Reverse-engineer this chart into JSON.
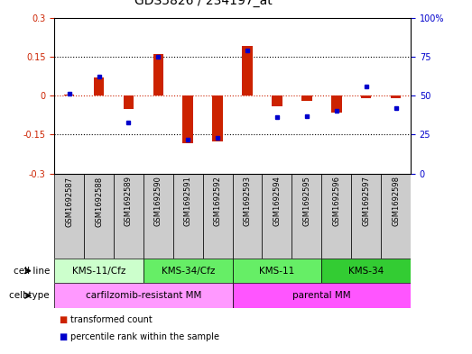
{
  "title": "GDS5826 / 234197_at",
  "samples": [
    "GSM1692587",
    "GSM1692588",
    "GSM1692589",
    "GSM1692590",
    "GSM1692591",
    "GSM1692592",
    "GSM1692593",
    "GSM1692594",
    "GSM1692595",
    "GSM1692596",
    "GSM1692597",
    "GSM1692598"
  ],
  "transformed_count": [
    0.005,
    0.07,
    -0.05,
    0.16,
    -0.185,
    -0.175,
    0.19,
    -0.04,
    -0.02,
    -0.065,
    -0.01,
    -0.01
  ],
  "percentile_rank": [
    51,
    62,
    33,
    75,
    22,
    23,
    79,
    36,
    37,
    40,
    56,
    42
  ],
  "ylim_left": [
    -0.3,
    0.3
  ],
  "ylim_right": [
    0,
    100
  ],
  "yticks_left": [
    -0.3,
    -0.15,
    0,
    0.15,
    0.3
  ],
  "yticks_right": [
    0,
    25,
    50,
    75,
    100
  ],
  "cell_line_groups": [
    {
      "label": "KMS-11/Cfz",
      "start": 0,
      "end": 3,
      "color": "#ccffcc"
    },
    {
      "label": "KMS-34/Cfz",
      "start": 3,
      "end": 6,
      "color": "#66ee66"
    },
    {
      "label": "KMS-11",
      "start": 6,
      "end": 9,
      "color": "#66ee66"
    },
    {
      "label": "KMS-34",
      "start": 9,
      "end": 12,
      "color": "#33cc33"
    }
  ],
  "cell_type_groups": [
    {
      "label": "carfilzomib-resistant MM",
      "start": 0,
      "end": 6,
      "color": "#ff99ff"
    },
    {
      "label": "parental MM",
      "start": 6,
      "end": 12,
      "color": "#ff55ff"
    }
  ],
  "bar_color": "#cc2200",
  "dot_color": "#0000cc",
  "zero_line_color": "#cc2200",
  "grid_color": "#000000",
  "bg_color": "#ffffff",
  "plot_bg": "#ffffff",
  "sample_bg": "#cccccc",
  "legend_red_label": "transformed count",
  "legend_blue_label": "percentile rank within the sample"
}
